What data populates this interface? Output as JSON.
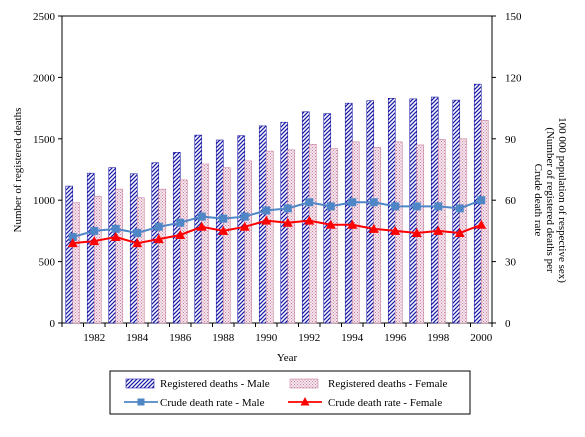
{
  "chart_data": {
    "type": "bar",
    "x": [
      1981,
      1982,
      1983,
      1984,
      1985,
      1986,
      1987,
      1988,
      1989,
      1990,
      1991,
      1992,
      1993,
      1994,
      1995,
      1996,
      1997,
      1998,
      1999,
      2000
    ],
    "x_tick_labels": [
      "1982",
      "1984",
      "1986",
      "1988",
      "1990",
      "1992",
      "1994",
      "1996",
      "1998",
      "2000"
    ],
    "xlabel": "Year",
    "ylabel_left": "Number of registered deaths",
    "ylabel_right_lines": [
      "Crude death rate",
      "(Number of registered deaths per",
      "100 000 population of respective sex)"
    ],
    "ylim_left": [
      0,
      2500
    ],
    "yticks_left": [
      "0",
      "500",
      "1000",
      "1500",
      "2000",
      "2500"
    ],
    "ylim_right": [
      0,
      150
    ],
    "yticks_right": [
      "0",
      "30",
      "60",
      "90",
      "120",
      "150"
    ],
    "legend_position": "bottom",
    "series": [
      {
        "name": "Registered deaths - Male",
        "kind": "bar",
        "axis": "left",
        "color": "#1a1aa6",
        "values": [
          1115,
          1220,
          1265,
          1215,
          1305,
          1390,
          1530,
          1490,
          1525,
          1605,
          1635,
          1720,
          1705,
          1790,
          1810,
          1830,
          1825,
          1840,
          1815,
          1945
        ]
      },
      {
        "name": "Registered deaths - Female",
        "kind": "bar",
        "axis": "left",
        "color": "#d9b3c6",
        "values": [
          980,
          1030,
          1090,
          1020,
          1090,
          1165,
          1295,
          1265,
          1320,
          1400,
          1410,
          1455,
          1420,
          1475,
          1430,
          1475,
          1450,
          1495,
          1500,
          1650
        ]
      },
      {
        "name": "Crude death rate - Male",
        "kind": "line",
        "axis": "right",
        "color": "#4f86c6",
        "values": [
          42,
          45,
          46,
          44,
          47,
          49,
          52,
          51,
          52,
          55,
          56,
          59,
          57,
          59,
          59,
          57,
          57,
          57,
          56,
          60
        ]
      },
      {
        "name": "Crude death rate - Female",
        "kind": "line",
        "axis": "right",
        "color": "#ff0000",
        "values": [
          39,
          40,
          42,
          39,
          41,
          43,
          47,
          45,
          47,
          50,
          49,
          50,
          48,
          48,
          46,
          45,
          44,
          45,
          44,
          48
        ]
      }
    ]
  }
}
